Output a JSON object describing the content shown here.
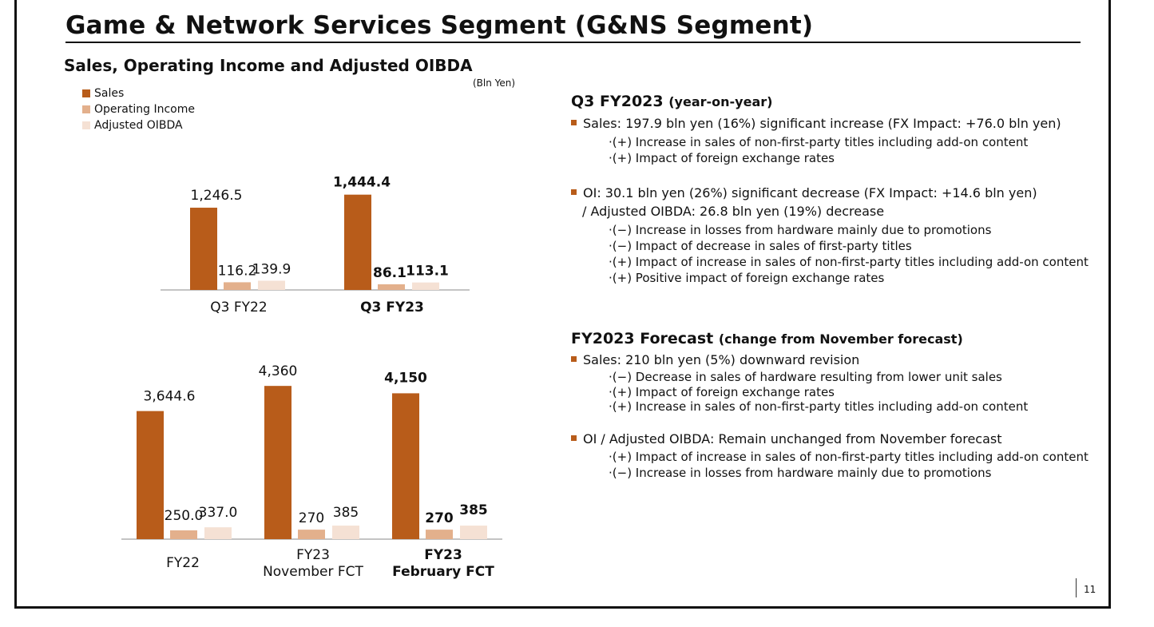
{
  "slide": {
    "title": "Game & Network Services Segment (G&NS Segment)",
    "subtitle": "Sales, Operating Income and Adjusted OIBDA",
    "unit_note": "(Bln Yen)",
    "page_number": "11"
  },
  "legend": [
    {
      "label": "Sales",
      "color": "#b85c1a"
    },
    {
      "label": "Operating Income",
      "color": "#e3b08c"
    },
    {
      "label": "Adjusted OIBDA",
      "color": "#f5e1d4"
    }
  ],
  "chart_data": [
    {
      "type": "bar",
      "series": [
        {
          "name": "Sales",
          "values": [
            1246.5,
            1444.4
          ],
          "labels": [
            "1,246.5",
            "1,444.4"
          ]
        },
        {
          "name": "Operating Income",
          "values": [
            116.2,
            86.1
          ],
          "labels": [
            "116.2",
            "86.1"
          ]
        },
        {
          "name": "Adjusted OIBDA",
          "values": [
            139.9,
            113.1
          ],
          "labels": [
            "139.9",
            "113.1"
          ]
        }
      ],
      "categories": [
        "Q3 FY22",
        "Q3 FY23"
      ],
      "bold_categories": [
        false,
        true
      ]
    },
    {
      "type": "bar",
      "series": [
        {
          "name": "Sales",
          "values": [
            3644.6,
            4360,
            4150
          ],
          "labels": [
            "3,644.6",
            "4,360",
            "4,150"
          ]
        },
        {
          "name": "Operating Income",
          "values": [
            250.0,
            270,
            270
          ],
          "labels": [
            "250.0",
            "270",
            "270"
          ]
        },
        {
          "name": "Adjusted OIBDA",
          "values": [
            337.0,
            385,
            385
          ],
          "labels": [
            "337.0",
            "385",
            "385"
          ]
        }
      ],
      "categories": [
        [
          "FY22"
        ],
        [
          "FY23",
          "November FCT"
        ],
        [
          "FY23",
          "February FCT"
        ]
      ],
      "bold_categories": [
        false,
        false,
        true
      ]
    }
  ],
  "q3": {
    "heading_main": "Q3 FY2023",
    "heading_sub": "(year-on-year)",
    "sales_line": "Sales: 197.9 bln yen (16%) significant increase (FX Impact: +76.0 bln yen)",
    "sales_points": [
      "·(+) Increase in sales of non-first-party titles including add-on content",
      "·(+) Impact of foreign exchange rates"
    ],
    "oi_line": "OI:  30.1 bln yen (26%) significant decrease  (FX Impact: +14.6 bln yen)",
    "oibda_line": "/ Adjusted OIBDA: 26.8 bln yen (19%) decrease",
    "oi_points": [
      "·(−) Increase in losses from hardware mainly due to promotions",
      "·(−) Impact of decrease in sales of first-party titles",
      "·(+) Impact of increase in sales of non-first-party titles including add-on content",
      "·(+) Positive impact of foreign exchange rates"
    ]
  },
  "forecast": {
    "heading_main": "FY2023 Forecast",
    "heading_sub": "(change from November forecast)",
    "sales_line": "Sales: 210 bln yen (5%) downward revision",
    "sales_points": [
      "·(−) Decrease in sales of hardware resulting from lower unit sales",
      "·(+) Impact of foreign exchange rates",
      "·(+) Increase in sales of non-first-party titles including add-on content"
    ],
    "oi_line": "OI / Adjusted OIBDA: Remain unchanged from November forecast",
    "oi_points": [
      "·(+) Impact of increase in sales of non-first-party titles including add-on content",
      "·(−) Increase in losses from hardware mainly due to promotions"
    ]
  }
}
